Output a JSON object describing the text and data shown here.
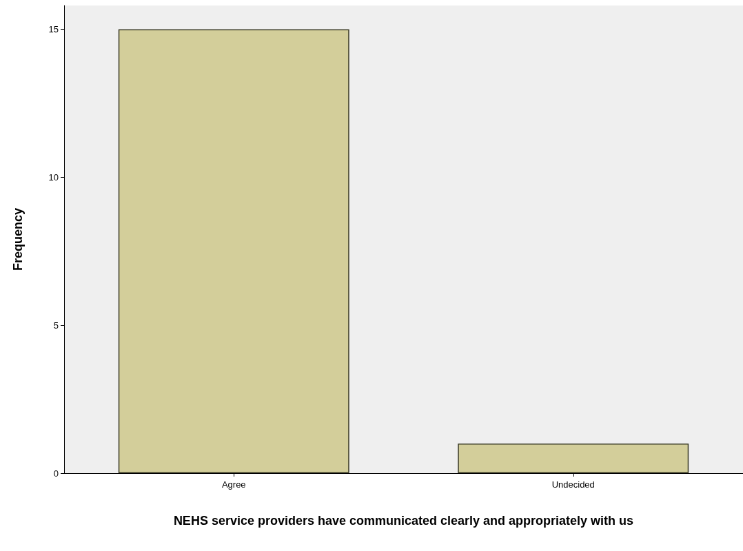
{
  "chart_data": {
    "type": "bar",
    "xlabel": "NEHS service providers have communicated clearly and appropriately with us",
    "ylabel": "Frequency",
    "categories": [
      "Agree",
      "Undecided"
    ],
    "values": [
      15,
      1
    ],
    "color": "#d3ce9a",
    "ylim": [
      0,
      15.8
    ],
    "yticks": [
      0,
      5,
      10,
      15
    ]
  }
}
